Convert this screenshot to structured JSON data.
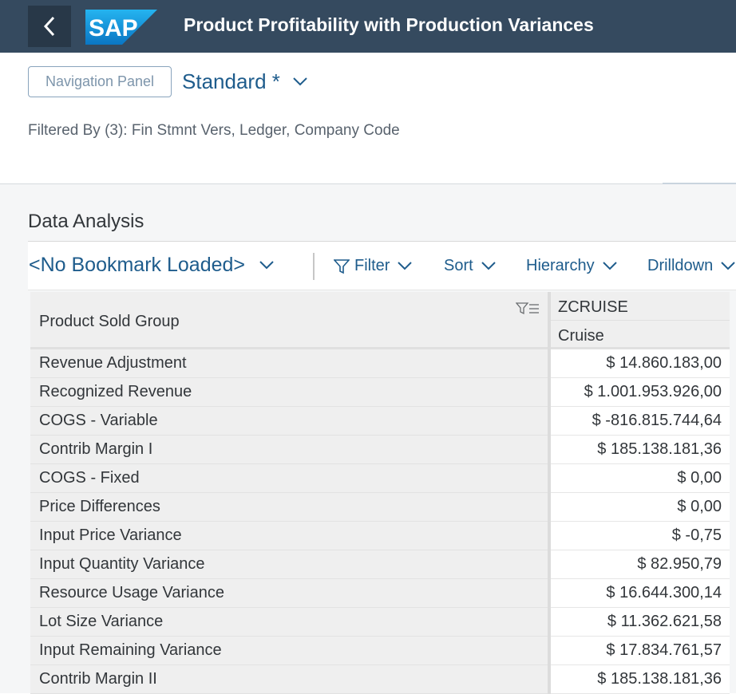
{
  "shell": {
    "logo_text": "SAP",
    "title": "Product Profitability with Production Variances"
  },
  "header": {
    "nav_panel_label": "Navigation Panel",
    "variant_name": "Standard *",
    "filtered_by": "Filtered By (3): Fin Stmnt Vers, Ledger, Company Code"
  },
  "section": {
    "title": "Data Analysis"
  },
  "toolbar": {
    "bookmark": "<No Bookmark Loaded>",
    "filter": "Filter",
    "sort": "Sort",
    "hierarchy": "Hierarchy",
    "drilldown": "Drilldown"
  },
  "table": {
    "row_header": "Product Sold Group",
    "col_key": "ZCRUISE",
    "col_text": "Cruise",
    "rows": [
      {
        "label": "Revenue Adjustment",
        "value": "$ 14.860.183,00"
      },
      {
        "label": "Recognized Revenue",
        "value": "$ 1.001.953.926,00"
      },
      {
        "label": "COGS - Variable",
        "value": "$ -816.815.744,64"
      },
      {
        "label": "Contrib Margin I",
        "value": "$ 185.138.181,36"
      },
      {
        "label": "COGS - Fixed",
        "value": "$ 0,00"
      },
      {
        "label": "Price Differences",
        "value": "$ 0,00"
      },
      {
        "label": "Input Price Variance",
        "value": "$ -0,75"
      },
      {
        "label": "Input Quantity Variance",
        "value": "$ 82.950,79"
      },
      {
        "label": "Resource Usage Variance",
        "value": "$ 16.644.300,14"
      },
      {
        "label": "Lot Size Variance",
        "value": "$ 11.362.621,58"
      },
      {
        "label": "Input Remaining Variance",
        "value": "$ 17.834.761,57"
      },
      {
        "label": "Contrib Margin II",
        "value": "$ 185.138.181,36"
      }
    ]
  },
  "colors": {
    "shell_bg": "#354a5f",
    "back_btn_bg": "#283848",
    "link_blue": "#1e5c8c",
    "logo_blue": "#1a9ee2"
  }
}
